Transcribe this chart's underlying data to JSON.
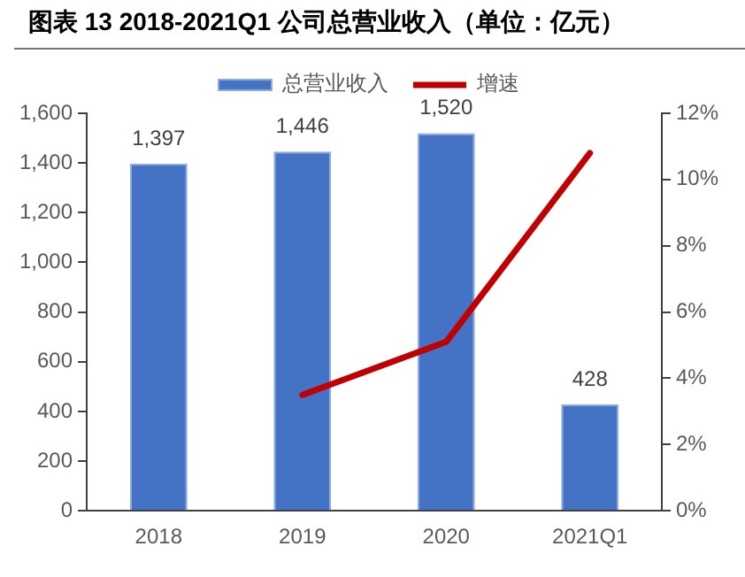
{
  "chart_data": {
    "type": "bar",
    "title": "图表 13 2018-2021Q1 公司总营业收入（单位：亿元）",
    "categories": [
      "2018",
      "2019",
      "2020",
      "2021Q1"
    ],
    "series": [
      {
        "name": "总营业收入",
        "color": "#4472c4",
        "values": [
          1397,
          1446,
          1520,
          428
        ],
        "value_labels": [
          "1,397",
          "1,446",
          "1,520",
          "428"
        ]
      },
      {
        "name": "增速",
        "type": "line",
        "axis": "y2",
        "color": "#c00000",
        "values": [
          null,
          3.5,
          5.1,
          10.8
        ],
        "marker": "none"
      }
    ],
    "ylim": [
      0,
      1600
    ],
    "yticks": [
      0,
      200,
      400,
      600,
      800,
      {
        "value": 1000,
        "label": "1,000"
      },
      {
        "value": 1200,
        "label": "1,200"
      },
      {
        "value": 1400,
        "label": "1,400"
      },
      {
        "value": 1600,
        "label": "1,600"
      }
    ],
    "y2lim": [
      0,
      12
    ],
    "y2ticks": [
      {
        "value": 0,
        "label": "0%"
      },
      {
        "value": 2,
        "label": "2%"
      },
      {
        "value": 4,
        "label": "4%"
      },
      {
        "value": 6,
        "label": "6%"
      },
      {
        "value": 8,
        "label": "8%"
      },
      {
        "value": 10,
        "label": "10%"
      },
      {
        "value": 12,
        "label": "12%"
      }
    ],
    "grid": false,
    "legend": "top"
  }
}
